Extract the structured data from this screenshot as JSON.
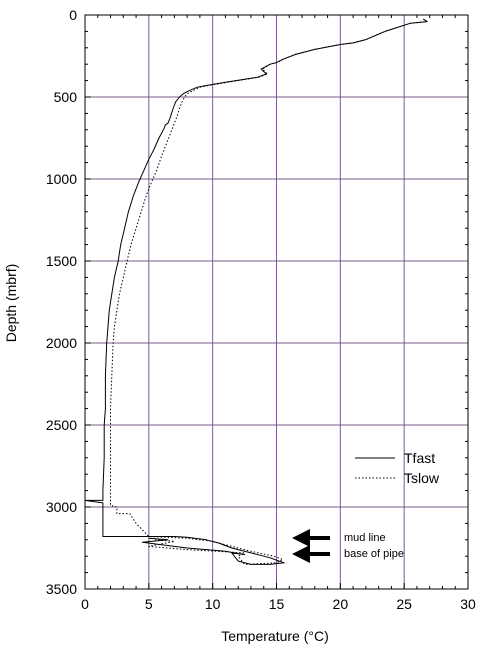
{
  "chart_data": {
    "type": "line",
    "title": "",
    "xlabel": "Temperature (°C)",
    "ylabel": "Depth (mbrf)",
    "xlim": [
      0,
      30
    ],
    "ylim": [
      3500,
      0
    ],
    "y_inverted": true,
    "x_ticks": [
      0,
      5,
      10,
      15,
      20,
      25,
      30
    ],
    "y_ticks": [
      0,
      500,
      1000,
      1500,
      2000,
      2500,
      3000,
      3500
    ],
    "grid": true,
    "grid_color": "#7a5a8a",
    "legend": {
      "placement": "lower-right",
      "entries": [
        "Tfast",
        "Tslow"
      ]
    },
    "series": [
      {
        "name": "Tfast",
        "style": "solid",
        "points": [
          [
            26.5,
            25
          ],
          [
            26.8,
            40
          ],
          [
            25.5,
            50
          ],
          [
            23.5,
            100
          ],
          [
            22.0,
            150
          ],
          [
            21.0,
            170
          ],
          [
            20.0,
            180
          ],
          [
            18.0,
            210
          ],
          [
            16.5,
            240
          ],
          [
            15.5,
            270
          ],
          [
            15.0,
            290
          ],
          [
            14.5,
            300
          ],
          [
            13.8,
            330
          ],
          [
            14.2,
            360
          ],
          [
            13.5,
            380
          ],
          [
            11.0,
            410
          ],
          [
            9.5,
            430
          ],
          [
            8.8,
            440
          ],
          [
            8.2,
            460
          ],
          [
            7.7,
            480
          ],
          [
            7.4,
            500
          ],
          [
            7.1,
            530
          ],
          [
            6.9,
            570
          ],
          [
            6.7,
            620
          ],
          [
            6.5,
            660
          ],
          [
            6.3,
            670
          ],
          [
            6.2,
            690
          ],
          [
            5.8,
            750
          ],
          [
            5.4,
            820
          ],
          [
            5.0,
            880
          ],
          [
            4.6,
            950
          ],
          [
            4.2,
            1020
          ],
          [
            3.8,
            1100
          ],
          [
            3.4,
            1200
          ],
          [
            3.1,
            1300
          ],
          [
            2.8,
            1400
          ],
          [
            2.6,
            1500
          ],
          [
            2.3,
            1600
          ],
          [
            2.1,
            1700
          ],
          [
            1.9,
            1800
          ],
          [
            1.8,
            1900
          ],
          [
            1.7,
            2000
          ],
          [
            1.6,
            2200
          ],
          [
            1.6,
            2400
          ],
          [
            1.5,
            2500
          ],
          [
            1.5,
            2700
          ],
          [
            1.4,
            2900
          ],
          [
            1.4,
            2960
          ],
          [
            0.0,
            2960
          ],
          [
            1.4,
            2975
          ],
          [
            1.4,
            3180
          ],
          [
            4.0,
            3180
          ],
          [
            7.0,
            3180
          ],
          [
            8.0,
            3185
          ],
          [
            9.5,
            3200
          ],
          [
            10.5,
            3220
          ],
          [
            11.5,
            3250
          ],
          [
            13.0,
            3280
          ],
          [
            14.5,
            3310
          ],
          [
            15.2,
            3330
          ],
          [
            15.6,
            3340
          ],
          [
            14.5,
            3350
          ],
          [
            13.0,
            3350
          ],
          [
            12.0,
            3330
          ],
          [
            11.5,
            3280
          ],
          [
            12.5,
            3290
          ],
          [
            11.0,
            3270
          ],
          [
            8.0,
            3250
          ],
          [
            6.0,
            3230
          ],
          [
            4.5,
            3215
          ],
          [
            6.5,
            3200
          ],
          [
            5.0,
            3190
          ]
        ]
      },
      {
        "name": "Tslow",
        "style": "dotted",
        "points": [
          [
            26.5,
            25
          ],
          [
            26.8,
            40
          ],
          [
            25.5,
            50
          ],
          [
            23.5,
            100
          ],
          [
            22.0,
            150
          ],
          [
            21.0,
            170
          ],
          [
            20.0,
            180
          ],
          [
            18.0,
            210
          ],
          [
            16.5,
            240
          ],
          [
            15.5,
            270
          ],
          [
            15.0,
            290
          ],
          [
            14.5,
            300
          ],
          [
            13.9,
            330
          ],
          [
            14.3,
            360
          ],
          [
            13.6,
            380
          ],
          [
            11.2,
            410
          ],
          [
            9.7,
            430
          ],
          [
            9.0,
            440
          ],
          [
            8.5,
            460
          ],
          [
            8.0,
            480
          ],
          [
            7.8,
            500
          ],
          [
            7.6,
            530
          ],
          [
            7.4,
            570
          ],
          [
            7.2,
            620
          ],
          [
            7.0,
            660
          ],
          [
            6.8,
            700
          ],
          [
            6.4,
            780
          ],
          [
            6.0,
            860
          ],
          [
            5.6,
            950
          ],
          [
            5.2,
            1020
          ],
          [
            4.8,
            1100
          ],
          [
            4.4,
            1200
          ],
          [
            4.0,
            1300
          ],
          [
            3.6,
            1400
          ],
          [
            3.3,
            1500
          ],
          [
            3.0,
            1600
          ],
          [
            2.7,
            1700
          ],
          [
            2.5,
            1800
          ],
          [
            2.3,
            1900
          ],
          [
            2.2,
            2000
          ],
          [
            2.1,
            2200
          ],
          [
            2.0,
            2400
          ],
          [
            2.0,
            2600
          ],
          [
            2.0,
            2800
          ],
          [
            2.0,
            2990
          ],
          [
            2.5,
            3000
          ],
          [
            2.5,
            3040
          ],
          [
            3.5,
            3040
          ],
          [
            4.0,
            3100
          ],
          [
            5.0,
            3180
          ],
          [
            8.0,
            3190
          ],
          [
            9.0,
            3200
          ],
          [
            10.0,
            3210
          ],
          [
            11.5,
            3240
          ],
          [
            13.0,
            3270
          ],
          [
            14.8,
            3300
          ],
          [
            15.5,
            3320
          ],
          [
            15.0,
            3340
          ],
          [
            12.5,
            3350
          ],
          [
            12.0,
            3300
          ],
          [
            12.5,
            3280
          ],
          [
            8.0,
            3260
          ],
          [
            5.0,
            3240
          ],
          [
            7.0,
            3210
          ],
          [
            5.5,
            3200
          ]
        ]
      }
    ],
    "annotations": [
      {
        "text": "mud line",
        "depth": 3180
      },
      {
        "text": "base of pipe",
        "depth": 3240
      }
    ]
  }
}
